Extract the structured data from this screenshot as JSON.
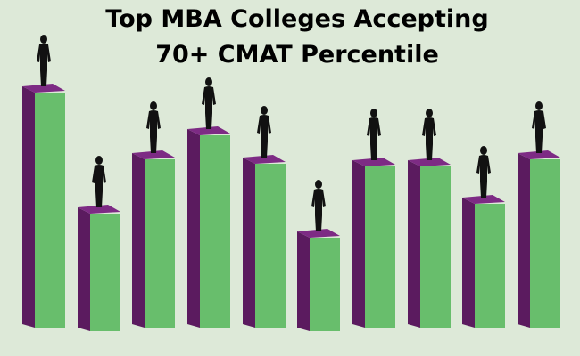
{
  "header": {
    "title_lines": [
      "Top MBA Colleges Accepting",
      "70+ CMAT Percentile"
    ]
  }
}
